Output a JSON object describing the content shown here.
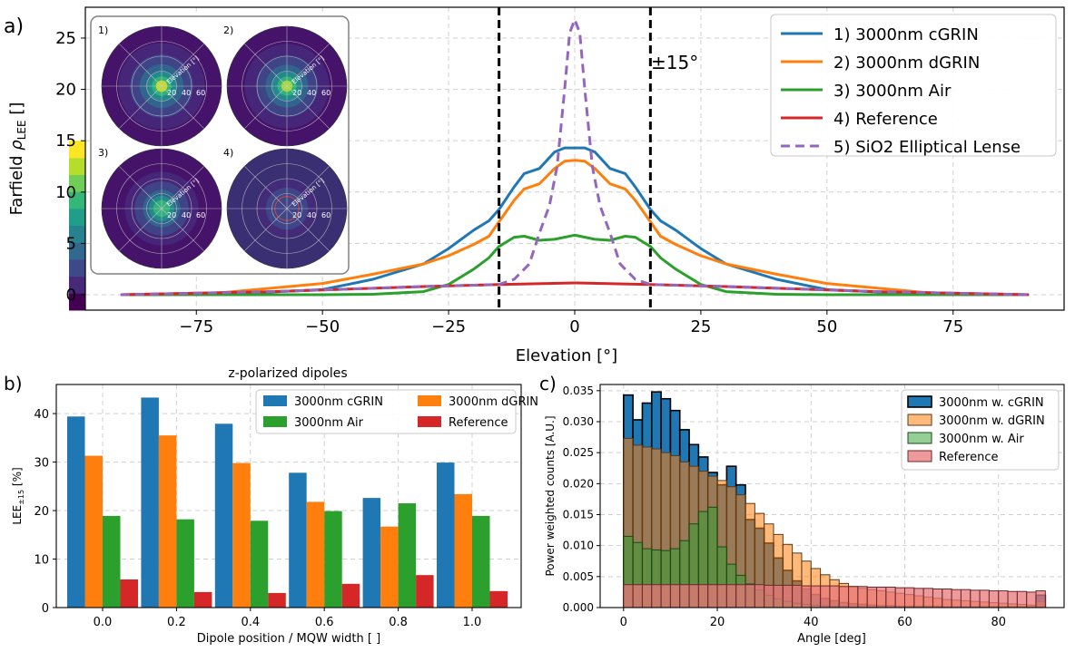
{
  "panels": {
    "a": {
      "label": "a)"
    },
    "b": {
      "label": "b)"
    },
    "c": {
      "label": "c)"
    }
  },
  "chart_data": [
    {
      "id": "a",
      "type": "line",
      "title": "",
      "xlabel": "Elevation [°]",
      "ylabel": "Farfield ρ_LEE []",
      "ylabel_main": "Farfield ",
      "ylabel_rho": "ρ",
      "ylabel_sub": "LEE",
      "ylabel_tail": " []",
      "xlim": [
        -97,
        97
      ],
      "ylim": [
        -1.5,
        28
      ],
      "xticks": [
        -75,
        -50,
        -25,
        0,
        25,
        50,
        75
      ],
      "xtick_labels": [
        "−75",
        "−50",
        "−25",
        "0",
        "25",
        "50",
        "75"
      ],
      "yticks": [
        0,
        5,
        10,
        15,
        20,
        25
      ],
      "grid": true,
      "legend_position": "top-right",
      "vlines": [
        -15,
        15
      ],
      "annotation": "±15°",
      "series": [
        {
          "name": "1) 3000nm cGRIN",
          "color": "#1f77b4",
          "dash": false,
          "x": [
            -90,
            -70,
            -50,
            -40,
            -30,
            -25,
            -20,
            -17,
            -15,
            -12,
            -10,
            -7,
            -4,
            -2,
            0,
            2,
            4,
            7,
            10,
            12,
            15,
            17,
            20,
            25,
            30,
            40,
            50,
            70,
            90
          ],
          "y": [
            0,
            0.05,
            0.5,
            1.5,
            3,
            4.5,
            6.3,
            7.2,
            8.3,
            10.5,
            11.8,
            12.3,
            13.9,
            14.3,
            14.3,
            14.3,
            13.9,
            12.3,
            11.8,
            10.5,
            8.3,
            7.2,
            6.3,
            4.5,
            3,
            1.5,
            0.5,
            0.05,
            0
          ]
        },
        {
          "name": "2) 3000nm dGRIN",
          "color": "#ff7f0e",
          "dash": false,
          "x": [
            -90,
            -70,
            -50,
            -40,
            -30,
            -25,
            -20,
            -17,
            -15,
            -12,
            -10,
            -7,
            -4,
            -2,
            0,
            2,
            4,
            7,
            10,
            12,
            15,
            17,
            20,
            25,
            30,
            40,
            50,
            70,
            90
          ],
          "y": [
            0,
            0.2,
            1.1,
            2,
            3,
            3.8,
            4.9,
            5.7,
            7.1,
            9.2,
            10.3,
            10.8,
            12.3,
            13,
            13.1,
            13,
            12.3,
            10.8,
            10.3,
            9.2,
            7.1,
            5.7,
            4.9,
            3.8,
            3,
            2,
            1.1,
            0.2,
            0
          ]
        },
        {
          "name": "3) 3000nm Air",
          "color": "#2ca02c",
          "dash": false,
          "x": [
            -90,
            -70,
            -50,
            -40,
            -30,
            -25,
            -20,
            -17,
            -15,
            -12,
            -10,
            -7,
            -4,
            0,
            4,
            7,
            10,
            12,
            15,
            17,
            20,
            25,
            30,
            40,
            50,
            70,
            90
          ],
          "y": [
            0,
            0,
            0,
            0.05,
            0.3,
            1,
            2.5,
            3.6,
            4.7,
            5.6,
            5.7,
            5.3,
            5.4,
            5.8,
            5.4,
            5.3,
            5.7,
            5.6,
            4.7,
            3.6,
            2.5,
            1,
            0.3,
            0.05,
            0,
            0,
            0
          ]
        },
        {
          "name": "4) Reference",
          "color": "#d62728",
          "dash": false,
          "x": [
            -90,
            -60,
            -30,
            -15,
            0,
            15,
            30,
            60,
            90
          ],
          "y": [
            0,
            0.3,
            0.8,
            1,
            1.15,
            1,
            0.8,
            0.3,
            0
          ]
        },
        {
          "name": "5) SiO2 Elliptical Lense",
          "color": "#9467bd",
          "dash": true,
          "x": [
            -90,
            -60,
            -30,
            -15,
            -12,
            -9,
            -7,
            -5,
            -3.5,
            -2,
            -1,
            0,
            1,
            2,
            3.5,
            5,
            7,
            9,
            12,
            15,
            30,
            60,
            90
          ],
          "y": [
            0,
            0.3,
            0.8,
            1,
            1.5,
            3,
            6,
            8.7,
            12.5,
            20,
            25.5,
            26.8,
            25.5,
            20,
            12.5,
            8.7,
            6,
            3,
            1.5,
            1,
            0.8,
            0.3,
            0
          ]
        }
      ],
      "inset": {
        "panels": [
          {
            "label": "1)",
            "core_color": "#d8e219",
            "glow": 0.9
          },
          {
            "label": "2)",
            "core_color": "#b5de2b",
            "glow": 0.85
          },
          {
            "label": "3)",
            "core_color": "#35b779",
            "glow": 0.55
          },
          {
            "label": "4)",
            "core_color": "#46327e",
            "glow": 0.1
          }
        ],
        "polar_label": "Elevation [°]",
        "polar_ticks": [
          "20",
          "40",
          "60"
        ],
        "colorbar": {
          "min": 0,
          "max": 15,
          "colors": [
            "#440154",
            "#482878",
            "#3e4989",
            "#31688e",
            "#26828e",
            "#1f9e89",
            "#35b779",
            "#6ece58",
            "#b5de2b",
            "#fde725"
          ]
        }
      }
    },
    {
      "id": "b",
      "type": "bar",
      "title": "z-polarized dipoles",
      "xlabel": "Dipole position / MQW width [ ]",
      "ylabel": "LEE±15 [%]",
      "ylabel_main": "LEE",
      "ylabel_sub": "±15",
      "ylabel_tail": " [%]",
      "categories": [
        "0.0",
        "0.2",
        "0.4",
        "0.6",
        "0.8",
        "1.0"
      ],
      "ylim": [
        0,
        46
      ],
      "yticks": [
        0,
        10,
        20,
        30,
        40
      ],
      "grid": true,
      "legend_position": "top-right",
      "series": [
        {
          "name": "3000nm cGRIN",
          "color": "#1f77b4",
          "values": [
            39.4,
            43.3,
            37.9,
            27.8,
            22.6,
            29.9
          ]
        },
        {
          "name": "3000nm dGRIN",
          "color": "#ff7f0e",
          "values": [
            31.3,
            35.5,
            29.8,
            21.8,
            16.7,
            23.4
          ]
        },
        {
          "name": "3000nm Air",
          "color": "#2ca02c",
          "values": [
            18.9,
            18.2,
            17.9,
            19.9,
            21.5,
            18.9
          ]
        },
        {
          "name": "Reference",
          "color": "#d62728",
          "values": [
            5.8,
            3.2,
            3.0,
            4.9,
            6.7,
            3.4
          ]
        }
      ]
    },
    {
      "id": "c",
      "type": "bar",
      "subtype": "histogram",
      "title": "",
      "xlabel": "Angle [deg]",
      "ylabel": "Power weighted counts [A.U.]",
      "xlim": [
        -5,
        94
      ],
      "ylim": [
        0,
        0.036
      ],
      "xticks": [
        0,
        20,
        40,
        60,
        80
      ],
      "yticks": [
        0,
        0.005,
        0.01,
        0.015,
        0.02,
        0.025,
        0.03,
        0.035
      ],
      "ytick_labels": [
        "0.000",
        "0.005",
        "0.010",
        "0.015",
        "0.020",
        "0.025",
        "0.030",
        "0.035"
      ],
      "bin_edges_start": 0,
      "bin_width": 2,
      "grid": true,
      "legend_position": "top-right",
      "series": [
        {
          "name": "3000nm w. cGRIN",
          "color": "#1f77b4",
          "alpha": 1.0,
          "edge": "#000000",
          "values": [
            0.0343,
            0.0303,
            0.033,
            0.0348,
            0.0337,
            0.0318,
            0.0287,
            0.0263,
            0.0243,
            0.0218,
            0.0198,
            0.0228,
            0.0198,
            0.0142,
            0.0128,
            0.0104,
            0.008,
            0.006,
            0.0043,
            0.003,
            0.0021,
            0.0015,
            0.0011,
            0.0008,
            0.0006,
            0.0005,
            0.0004,
            0.0003,
            0.0003,
            0.0002,
            0.0002,
            0.0002,
            0.0002,
            0.0002,
            0.0001,
            0.0001,
            0.0001,
            0.0001,
            0.0001,
            0.0001,
            0.0001,
            0.0001,
            0.0001,
            0.0001,
            0.002
          ]
        },
        {
          "name": "3000nm w. dGRIN",
          "color": "#ff7f0e",
          "alpha": 0.55,
          "edge": "#5a3a1a",
          "values": [
            0.0273,
            0.0262,
            0.0259,
            0.0256,
            0.025,
            0.0245,
            0.0235,
            0.0228,
            0.022,
            0.0212,
            0.0205,
            0.0195,
            0.0182,
            0.0168,
            0.0152,
            0.0135,
            0.0118,
            0.0102,
            0.0088,
            0.0075,
            0.0063,
            0.0053,
            0.0045,
            0.0039,
            0.0034,
            0.0031,
            0.0029,
            0.0027,
            0.0025,
            0.0023,
            0.0021,
            0.0019,
            0.0017,
            0.0015,
            0.0013,
            0.0012,
            0.0011,
            0.001,
            0.0009,
            0.0008,
            0.0007,
            0.0006,
            0.0005,
            0.0004,
            0.001
          ]
        },
        {
          "name": "3000nm w. Air",
          "color": "#2ca02c",
          "alpha": 0.5,
          "edge": "#1a4a1a",
          "values": [
            0.0115,
            0.0105,
            0.0095,
            0.0093,
            0.0092,
            0.0095,
            0.0108,
            0.0135,
            0.0155,
            0.0162,
            0.0098,
            0.007,
            0.0052,
            0.0038,
            0.0028,
            0.002,
            0.0014,
            0.001,
            0.0007,
            0.0005,
            0.0004,
            0.0003,
            0.0002,
            0.0002,
            0.0001,
            0.0001,
            0.0001,
            0.0001,
            0.0001,
            0.0001,
            0.0001,
            0.0001,
            0.0001,
            0.0001,
            0.0001,
            0.0001,
            0.0001,
            0.0001,
            0.0001,
            0.0001,
            0.0001,
            0.0001,
            0.0001,
            0.0001,
            0.0001
          ]
        },
        {
          "name": "Reference",
          "color": "#e8777a",
          "alpha": 0.75,
          "edge": "#6a2a2a",
          "values": [
            0.0037,
            0.0037,
            0.0037,
            0.0037,
            0.0037,
            0.0037,
            0.0037,
            0.0037,
            0.0037,
            0.0037,
            0.0037,
            0.0037,
            0.0037,
            0.0037,
            0.0037,
            0.0036,
            0.0036,
            0.0036,
            0.0036,
            0.0035,
            0.0035,
            0.0035,
            0.0035,
            0.0034,
            0.0034,
            0.0034,
            0.0033,
            0.0033,
            0.0033,
            0.0032,
            0.0032,
            0.0031,
            0.0031,
            0.003,
            0.003,
            0.0029,
            0.0029,
            0.0028,
            0.0028,
            0.0027,
            0.0027,
            0.0026,
            0.0026,
            0.0025,
            0.0027
          ]
        }
      ]
    }
  ]
}
